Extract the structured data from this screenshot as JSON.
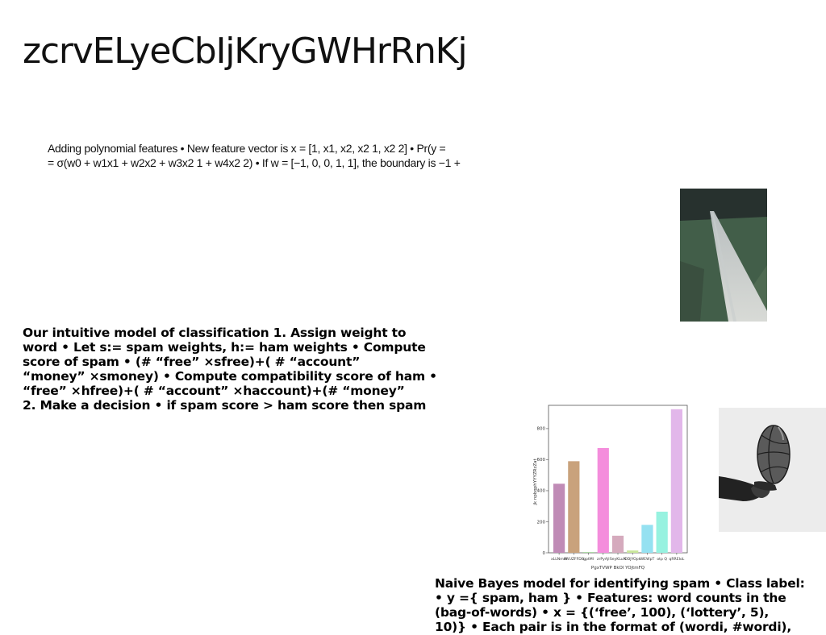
{
  "slide": {
    "title": "zcrvELyeCbIjKryGWHrRnKj",
    "poly_lines": [
      "Adding polynomial features • New feature vector is x = [1, x1, x2, x2 1, x2 2] • Pr(y =",
      "= σ(w0 + w1x1 + w2x2 + w3x2 1 + w4x2 2) • If w = [−1, 0, 0, 1, 1], the boundary is −1 +"
    ],
    "intuitive_lines": [
      "Our intuitive model of classification 1. Assign weight to",
      "word • Let s:= spam weights, h:= ham weights • Compute",
      "score of spam • (# “free” ×sfree)+( # “account”",
      "“money” ×smoney) • Compute compatibility score of ham •",
      "“free” ×hfree)+( # “account” ×haccount)+(# “money”",
      "2. Make a decision • if spam score > ham score then spam"
    ],
    "naive_lines": [
      "Naive Bayes model for identifying spam • Class label:",
      "• y ={ spam, ham } • Features: word counts in the",
      "(bag-of-words) • x = {(‘free’, 100), (‘lottery’, 5),",
      "10)} • Each pair is in the format of (wordi, #wordi),"
    ],
    "images": [
      "photo-road",
      "photo-basketball"
    ]
  },
  "chart_data": {
    "type": "bar",
    "categories": [
      "xLLNmW",
      "sWUZFFDB",
      "gptMl",
      "zrPyAjl",
      "SeyKLuN",
      "ODJYOpk",
      "WEWpT",
      "otp Q",
      "qRREIoL"
    ],
    "values": [
      445,
      590,
      5,
      675,
      110,
      15,
      180,
      265,
      925
    ],
    "colors": [
      "#c08bb6",
      "#c9a27c",
      "#a9d8a3",
      "#f48ddc",
      "#d5aabd",
      "#c9e69b",
      "#95e1f1",
      "#97f2e0",
      "#e2b7ea"
    ],
    "xlabel": "PgxTVWP BkOl YOjtmFQ",
    "ylabel": "jk npbqphYYYZRzZat",
    "ylim": [
      0,
      950
    ],
    "yticks": [
      0,
      200,
      400,
      600,
      800
    ],
    "grid": false
  }
}
